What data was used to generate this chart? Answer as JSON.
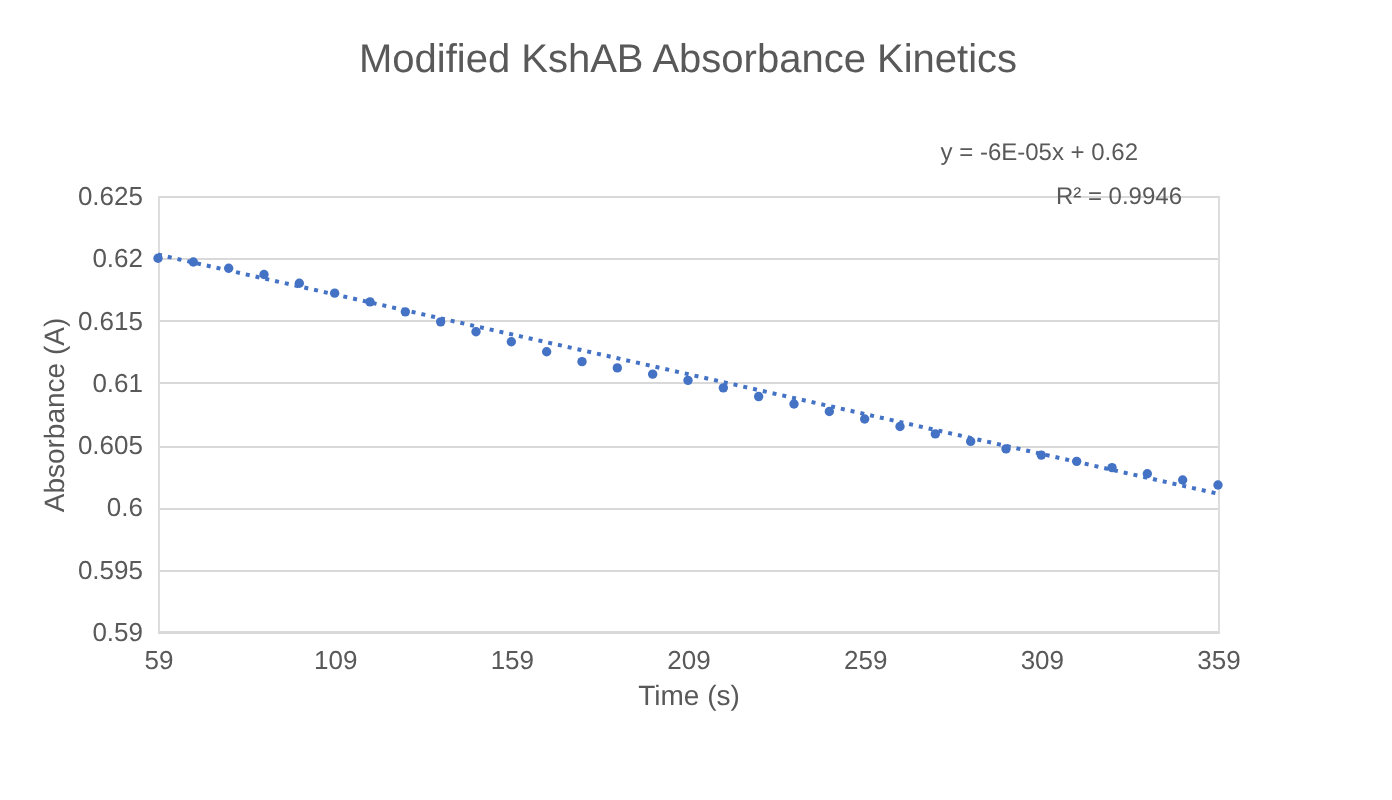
{
  "chart_data": {
    "type": "scatter",
    "title": "Modified KshAB Absorbance Kinetics",
    "xlabel": "Time (s)",
    "ylabel": "Absorbance (A)",
    "annotations": [
      "y = -6E-05x + 0.62",
      "R² = 0.9946"
    ],
    "xlim": [
      59,
      359
    ],
    "xticks": [
      59,
      109,
      159,
      209,
      259,
      309,
      359
    ],
    "ylim": [
      0.59,
      0.625
    ],
    "yticks": [
      0.59,
      0.595,
      0.6,
      0.605,
      0.61,
      0.615,
      0.62,
      0.625
    ],
    "grid": "y",
    "marker": "circle",
    "series": [
      {
        "type": "scatter",
        "color": "#4472c4",
        "x": [
          59,
          69,
          79,
          89,
          99,
          109,
          119,
          129,
          139,
          149,
          159,
          169,
          179,
          189,
          199,
          209,
          219,
          229,
          239,
          249,
          259,
          269,
          279,
          289,
          299,
          309,
          319,
          329,
          339,
          349,
          359
        ],
        "values": [
          0.62,
          0.6197,
          0.6192,
          0.6187,
          0.618,
          0.6172,
          0.6165,
          0.6157,
          0.6149,
          0.6141,
          0.6133,
          0.6125,
          0.6117,
          0.6112,
          0.6107,
          0.6102,
          0.6096,
          0.6089,
          0.6083,
          0.6077,
          0.6071,
          0.6065,
          0.6059,
          0.6053,
          0.6047,
          0.6042,
          0.6037,
          0.6032,
          0.6027,
          0.6022,
          0.6018
        ]
      },
      {
        "type": "line",
        "color": "#4472c4",
        "line_style": "dotted",
        "marker": "none",
        "x": [
          59,
          359
        ],
        "values": [
          0.6203,
          0.6011
        ]
      }
    ]
  }
}
